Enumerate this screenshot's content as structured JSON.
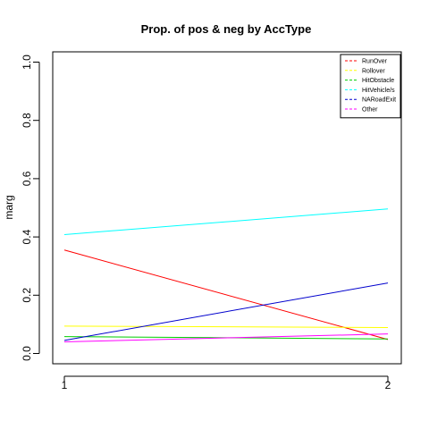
{
  "chart_data": {
    "type": "line",
    "title": "Prop. of pos & neg by AccType",
    "xlabel": "",
    "ylabel": "marg",
    "x": [
      1,
      2
    ],
    "x_ticks": [
      "1",
      "2"
    ],
    "y_ticks": [
      "0.0",
      "0.2",
      "0.4",
      "0.6",
      "0.8",
      "1.0"
    ],
    "ylim": [
      0,
      1
    ],
    "grid": false,
    "legend_position": "top-right",
    "series": [
      {
        "name": "RunOver",
        "values": [
          0.355,
          0.048
        ],
        "color": "#ff0000",
        "dash": true
      },
      {
        "name": "Rollover",
        "values": [
          0.094,
          0.089
        ],
        "color": "#ffff00",
        "dash": true
      },
      {
        "name": "HitObstacle",
        "values": [
          0.058,
          0.05
        ],
        "color": "#00cd00",
        "dash": true
      },
      {
        "name": "HitVehicle/s",
        "values": [
          0.408,
          0.496
        ],
        "color": "#00ffff",
        "dash": true
      },
      {
        "name": "NARoadExit",
        "values": [
          0.045,
          0.242
        ],
        "color": "#0000cd",
        "dash": true
      },
      {
        "name": "Other",
        "values": [
          0.04,
          0.067
        ],
        "color": "#ff00ff",
        "dash": true
      }
    ]
  }
}
